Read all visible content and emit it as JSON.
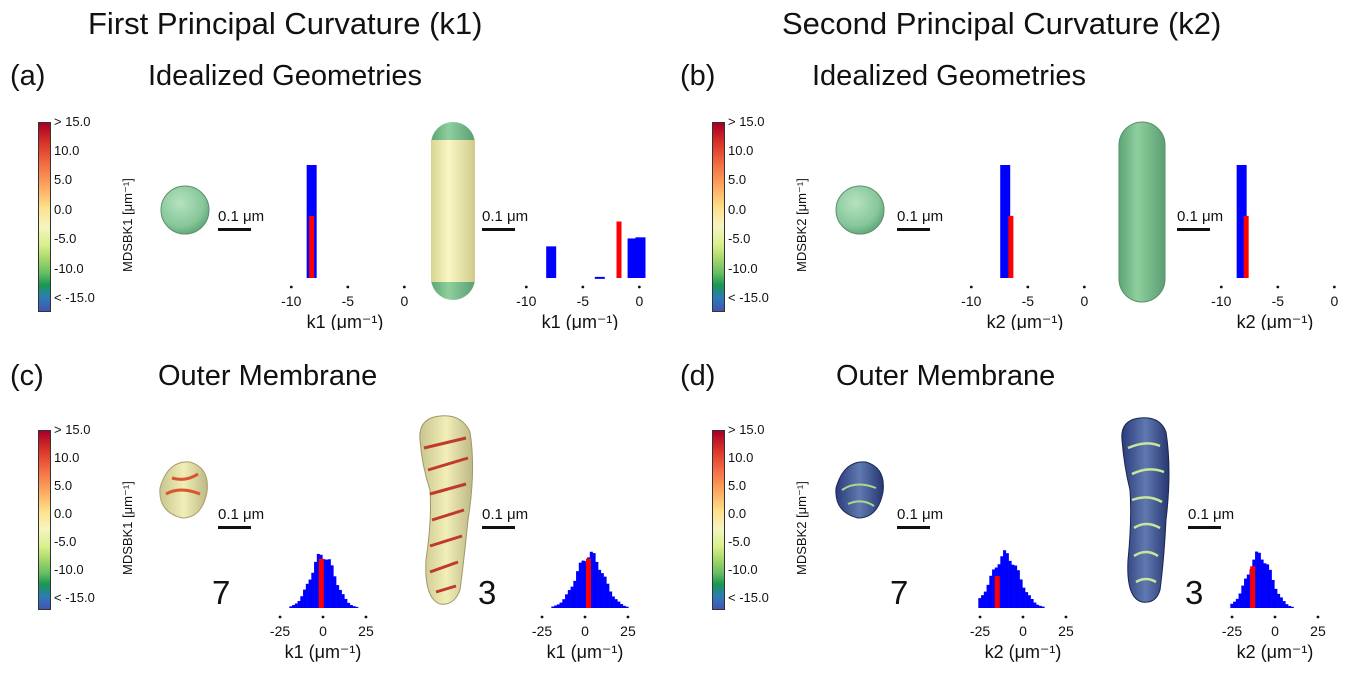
{
  "columns": {
    "left_title": "First Principal Curvature (k1)",
    "right_title": "Second Principal Curvature (k2)"
  },
  "panels": {
    "a": {
      "letter": "(a)",
      "title": "Idealized Geometries",
      "cbar_label": "MDSBK1 [μm⁻¹]"
    },
    "b": {
      "letter": "(b)",
      "title": "Idealized Geometries",
      "cbar_label": "MDSBK2 [μm⁻¹]"
    },
    "c": {
      "letter": "(c)",
      "title": "Outer Membrane",
      "cbar_label": "MDSBK1 [μm⁻¹]",
      "num_small": "7",
      "num_large": "3"
    },
    "d": {
      "letter": "(d)",
      "title": "Outer Membrane",
      "cbar_label": "MDSBK2 [μm⁻¹]",
      "num_small": "7",
      "num_large": "3"
    }
  },
  "colorbar_ticks": [
    "> 15.0",
    "10.0",
    "5.0",
    "0.0",
    "-5.0",
    "-10.0",
    "< -15.0"
  ],
  "scale_label": "0.1 μm",
  "colors": {
    "bar": "#0000ff",
    "marker": "#ff0000",
    "sphere": "#8fcf9e",
    "cylinder_core": "#f4f0b4"
  },
  "chart_data": [
    {
      "id": "a1",
      "type": "bar",
      "xlabel": "k1 (μm⁻¹)",
      "xticks": [
        -10,
        -5,
        0
      ],
      "xlim": [
        -11,
        0.5
      ],
      "bars": [
        {
          "x": -8.2,
          "height": 1.0
        }
      ],
      "marker": {
        "x": -8.2,
        "height": 0.55
      }
    },
    {
      "id": "a2",
      "type": "bar",
      "xlabel": "k1 (μm⁻¹)",
      "xticks": [
        -10,
        -5,
        0
      ],
      "xlim": [
        -11,
        0.5
      ],
      "bars": [
        {
          "x": -7.8,
          "height": 0.28
        },
        {
          "x": -3.5,
          "height": 0.01
        },
        {
          "x": -0.6,
          "height": 0.35
        },
        {
          "x": 0.1,
          "height": 0.36
        }
      ],
      "marker": {
        "x": -1.8,
        "height": 0.5
      }
    },
    {
      "id": "b1",
      "type": "bar",
      "xlabel": "k2 (μm⁻¹)",
      "xticks": [
        -10,
        -5,
        0
      ],
      "xlim": [
        -11,
        0.5
      ],
      "bars": [
        {
          "x": -7.0,
          "height": 1.0
        }
      ],
      "marker": {
        "x": -6.5,
        "height": 0.55
      }
    },
    {
      "id": "b2",
      "type": "bar",
      "xlabel": "k2 (μm⁻¹)",
      "xticks": [
        -10,
        -5,
        0
      ],
      "xlim": [
        -11,
        0.5
      ],
      "bars": [
        {
          "x": -8.2,
          "height": 1.0
        }
      ],
      "marker": {
        "x": -7.8,
        "height": 0.55
      }
    },
    {
      "id": "c1",
      "type": "histogram",
      "xlabel": "k1 (μm⁻¹)",
      "xticks": [
        -25,
        0,
        25
      ],
      "xlim": [
        -32,
        32
      ],
      "center": -1,
      "spread": 7,
      "marker": {
        "x": -1,
        "height": 0.85
      }
    },
    {
      "id": "c2",
      "type": "histogram",
      "xlabel": "k1 (μm⁻¹)",
      "xticks": [
        -25,
        0,
        25
      ],
      "xlim": [
        -32,
        32
      ],
      "center": 2,
      "spread": 8,
      "marker": {
        "x": 2,
        "height": 0.85
      }
    },
    {
      "id": "d1",
      "type": "histogram",
      "xlabel": "k2 (μm⁻¹)",
      "xticks": [
        -25,
        0,
        25
      ],
      "xlim": [
        -32,
        32
      ],
      "center": -11,
      "spread": 8,
      "marker": {
        "x": -15,
        "height": 0.55
      }
    },
    {
      "id": "d2",
      "type": "histogram",
      "xlabel": "k2 (μm⁻¹)",
      "xticks": [
        -25,
        0,
        25
      ],
      "xlim": [
        -32,
        32
      ],
      "center": -10,
      "spread": 7,
      "marker": {
        "x": -13,
        "height": 0.72
      }
    }
  ]
}
